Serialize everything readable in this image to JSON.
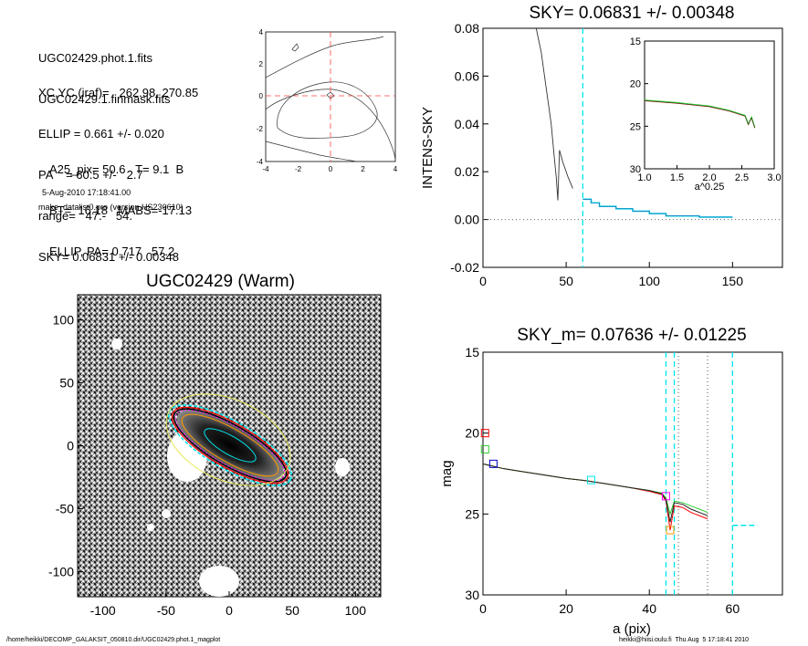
{
  "info": {
    "lines_a": [
      "UGC02429.phot.1.fits",
      "UGC02429.1.finmask.fits"
    ],
    "lines_b": [
      "XC,YC (iraf)=   262.98, 270.85",
      "ELLIP = 0.661 +/- 0.020",
      "PA    = 60.5 +/-   2.7",
      "range=   47.-   54.",
      "SKY= 0.06831 +/- 0.00348"
    ],
    "lines_c": [
      "A25_pix= 50.6   T= 9.1  B",
      "BT=  16.18   MABS=-17.13",
      "ELLIP, PA= 0.717   57.2"
    ],
    "timestamp": "5-Aug-2010 17:18:41.00",
    "program": "make_datalist0.pro (version HS230610)"
  },
  "footer": {
    "left": "/home/heikki/DECOMP_GALAKSIT_050810.dir/UGC02429.phot.1_magplot",
    "right": "heikki@hiisi.oulu.fi  Thu Aug  5 17:18:41 2010"
  },
  "colors": {
    "cyan": "#00e5ee",
    "red": "#ff0000",
    "green": "#2ecc2e",
    "blue": "#0000cc",
    "magenta": "#ff00ff",
    "yellow": "#e8e85a",
    "orange": "#ff9900"
  },
  "chart_data": [
    {
      "id": "contour",
      "type": "contour",
      "title": "",
      "xlim": [
        -4,
        4
      ],
      "ylim": [
        -4,
        4
      ],
      "xticks": [
        "-4",
        "-2",
        "0",
        "2",
        "4"
      ],
      "yticks": [
        "4",
        "2",
        "0",
        "-2",
        "-4"
      ]
    },
    {
      "id": "sky",
      "type": "line",
      "title": "SKY= 0.06831 +/- 0.00348",
      "ylabel": "INTENS-SKY",
      "xlim": [
        0,
        180
      ],
      "ylim": [
        -0.02,
        0.08
      ],
      "xticks": [
        "0",
        "50",
        "100",
        "150"
      ],
      "yticks": [
        "0.08",
        "0.06",
        "0.04",
        "0.02",
        "0.00",
        "-0.02"
      ],
      "series": [
        {
          "values": [
            [
              32,
              0.08
            ],
            [
              35,
              0.07
            ],
            [
              38,
              0.055
            ],
            [
              41,
              0.04
            ],
            [
              43,
              0.025
            ],
            [
              44,
              0.018
            ],
            [
              45,
              0.008
            ],
            [
              46,
              0.029
            ],
            [
              48,
              0.024
            ],
            [
              51,
              0.018
            ],
            [
              54,
              0.013
            ]
          ]
        },
        {
          "values": [
            [
              60,
              0.0085
            ],
            [
              65,
              0.0085
            ],
            [
              65,
              0.007
            ],
            [
              70,
              0.007
            ],
            [
              70,
              0.0055
            ],
            [
              80,
              0.0055
            ],
            [
              80,
              0.0045
            ],
            [
              90,
              0.0045
            ],
            [
              90,
              0.0035
            ],
            [
              100,
              0.0035
            ],
            [
              100,
              0.0025
            ],
            [
              110,
              0.0025
            ],
            [
              110,
              0.0015
            ],
            [
              130,
              0.0015
            ],
            [
              130,
              0.001
            ],
            [
              150,
              0.001
            ]
          ]
        }
      ],
      "sky_line_x": 60,
      "inset": {
        "xlabel": "a^0.25",
        "xlim": [
          1.0,
          3.0
        ],
        "ylim": [
          15,
          30
        ],
        "xticks": [
          "1.0",
          "1.5",
          "2.0",
          "2.5",
          "3.0"
        ],
        "yticks": [
          "15",
          "20",
          "25",
          "30"
        ],
        "series": [
          {
            "values": [
              [
                1.0,
                22.0
              ],
              [
                1.5,
                22.3
              ],
              [
                2.0,
                22.7
              ],
              [
                2.3,
                23.2
              ],
              [
                2.55,
                23.8
              ],
              [
                2.6,
                24.8
              ],
              [
                2.65,
                24.0
              ],
              [
                2.7,
                25.2
              ]
            ]
          }
        ]
      }
    },
    {
      "id": "image",
      "type": "image",
      "title": "UGC02429 (Warm)",
      "xlim": [
        -120,
        120
      ],
      "ylim": [
        -120,
        120
      ],
      "xticks": [
        "-100",
        "-50",
        "0",
        "50",
        "100"
      ],
      "yticks": [
        "100",
        "50",
        "0",
        "-50",
        "-100"
      ]
    },
    {
      "id": "mag",
      "type": "line",
      "title": "SKY_m=  0.07636 +/- 0.01225",
      "xlabel": "a (pix)",
      "ylabel": "mag",
      "xlim": [
        0,
        72
      ],
      "ylim": [
        15,
        30
      ],
      "xticks": [
        "0",
        "20",
        "40",
        "60"
      ],
      "yticks": [
        "15",
        "20",
        "25",
        "30"
      ],
      "series": [
        {
          "values": [
            [
              0,
              21.9
            ],
            [
              5,
              22.2
            ],
            [
              10,
              22.4
            ],
            [
              15,
              22.6
            ],
            [
              20,
              22.8
            ],
            [
              25,
              22.95
            ],
            [
              30,
              23.15
            ],
            [
              35,
              23.35
            ],
            [
              40,
              23.6
            ],
            [
              43,
              23.8
            ],
            [
              44,
              24.2
            ],
            [
              45,
              26.0
            ],
            [
              46,
              24.5
            ],
            [
              48,
              24.6
            ],
            [
              50,
              24.9
            ],
            [
              52,
              25.1
            ],
            [
              54,
              25.3
            ]
          ]
        },
        {
          "values": [
            [
              0,
              21.9
            ],
            [
              5,
              22.2
            ],
            [
              10,
              22.4
            ],
            [
              15,
              22.6
            ],
            [
              20,
              22.8
            ],
            [
              25,
              22.95
            ],
            [
              30,
              23.15
            ],
            [
              35,
              23.35
            ],
            [
              40,
              23.55
            ],
            [
              43,
              23.7
            ],
            [
              44,
              24.0
            ],
            [
              45,
              25.0
            ],
            [
              46,
              24.2
            ],
            [
              48,
              24.3
            ],
            [
              50,
              24.5
            ],
            [
              52,
              24.7
            ],
            [
              54,
              24.9
            ]
          ]
        },
        {
          "values": [
            [
              0,
              21.9
            ],
            [
              5,
              22.2
            ],
            [
              10,
              22.4
            ],
            [
              15,
              22.6
            ],
            [
              20,
              22.8
            ],
            [
              25,
              22.95
            ],
            [
              30,
              23.15
            ],
            [
              35,
              23.35
            ],
            [
              40,
              23.55
            ],
            [
              43,
              23.75
            ],
            [
              44,
              24.1
            ],
            [
              45,
              25.5
            ],
            [
              46,
              24.3
            ],
            [
              48,
              24.4
            ],
            [
              50,
              24.7
            ],
            [
              52,
              24.9
            ],
            [
              54,
              25.1
            ]
          ]
        }
      ],
      "markers": [
        {
          "x": 0.5,
          "y": 20.0,
          "color": "red"
        },
        {
          "x": 0.5,
          "y": 21.0,
          "color": "green"
        },
        {
          "x": 2.5,
          "y": 21.9,
          "color": "blue"
        },
        {
          "x": 26,
          "y": 22.9,
          "color": "cyan"
        },
        {
          "x": 44,
          "y": 23.9,
          "color": "magenta"
        },
        {
          "x": 45,
          "y": 26.0,
          "color": "orange"
        }
      ],
      "vlines_dotted": [
        47,
        54
      ],
      "vlines_dashed": [
        44,
        46,
        60
      ],
      "sky_level": {
        "x0": 60,
        "x1": 66,
        "y": 25.7
      }
    }
  ]
}
